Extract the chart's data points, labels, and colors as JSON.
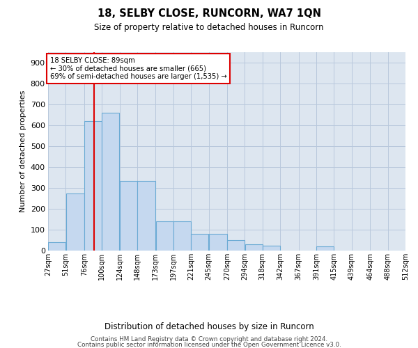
{
  "title": "18, SELBY CLOSE, RUNCORN, WA7 1QN",
  "subtitle": "Size of property relative to detached houses in Runcorn",
  "xlabel": "Distribution of detached houses by size in Runcorn",
  "ylabel": "Number of detached properties",
  "footer_line1": "Contains HM Land Registry data © Crown copyright and database right 2024.",
  "footer_line2": "Contains public sector information licensed under the Open Government Licence v3.0.",
  "annotation_title": "18 SELBY CLOSE: 89sqm",
  "annotation_line1": "← 30% of detached houses are smaller (665)",
  "annotation_line2": "69% of semi-detached houses are larger (1,535) →",
  "property_size": 89,
  "bar_color": "#c5d8ef",
  "bar_edge_color": "#6aaad4",
  "vline_color": "#dd0000",
  "background_color": "#ffffff",
  "axes_bg_color": "#dde6f0",
  "grid_color": "#b8c8dc",
  "bins": [
    27,
    51,
    76,
    100,
    124,
    148,
    173,
    197,
    221,
    245,
    270,
    294,
    318,
    342,
    367,
    391,
    415,
    439,
    464,
    488,
    512
  ],
  "bar_heights": [
    40,
    275,
    620,
    660,
    335,
    335,
    140,
    140,
    80,
    80,
    50,
    30,
    25,
    0,
    0,
    20,
    0,
    0,
    0,
    0
  ],
  "ylim": [
    0,
    950
  ],
  "yticks": [
    0,
    100,
    200,
    300,
    400,
    500,
    600,
    700,
    800,
    900
  ]
}
